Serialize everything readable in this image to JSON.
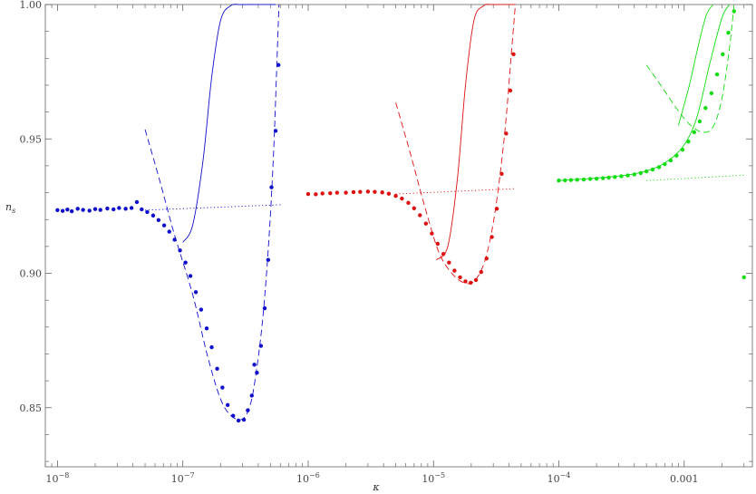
{
  "chart_data": {
    "type": "scatter",
    "title": "",
    "xlabel": "κ",
    "ylabel": "n",
    "ylabel_sub": "s",
    "xscale": "log",
    "xlim": [
      8e-09,
      0.0035
    ],
    "ylim": [
      0.828,
      1.0
    ],
    "grid": false,
    "legend": "none",
    "x_ticks": [
      {
        "value": 1e-08,
        "base": "10",
        "exp": "−8"
      },
      {
        "value": 1e-07,
        "base": "10",
        "exp": "−7"
      },
      {
        "value": 1e-06,
        "base": "10",
        "exp": "−6"
      },
      {
        "value": 1e-05,
        "base": "10",
        "exp": "−5"
      },
      {
        "value": 0.0001,
        "base": "10",
        "exp": "−4"
      },
      {
        "value": 0.001,
        "base": "0.001",
        "exp": ""
      }
    ],
    "y_ticks": [
      {
        "value": 0.85,
        "label": "0.85"
      },
      {
        "value": 0.9,
        "label": "0.90"
      },
      {
        "value": 0.95,
        "label": "0.95"
      },
      {
        "value": 1.0,
        "label": "1.00"
      }
    ],
    "series": [
      {
        "color": "#1010cc",
        "points": [
          [
            1e-08,
            0.9235
          ],
          [
            1.1e-08,
            0.9232
          ],
          [
            1.2e-08,
            0.9237
          ],
          [
            1.3e-08,
            0.9231
          ],
          [
            1.45e-08,
            0.924
          ],
          [
            1.6e-08,
            0.9236
          ],
          [
            1.8e-08,
            0.9233
          ],
          [
            2e-08,
            0.9239
          ],
          [
            2.2e-08,
            0.9236
          ],
          [
            2.5e-08,
            0.9241
          ],
          [
            2.8e-08,
            0.9238
          ],
          [
            3.1e-08,
            0.9243
          ],
          [
            3.5e-08,
            0.924
          ],
          [
            3.9e-08,
            0.9243
          ],
          [
            4.3e-08,
            0.9265
          ],
          [
            4.7e-08,
            0.9238
          ],
          [
            5.2e-08,
            0.9228
          ],
          [
            5.8e-08,
            0.9215
          ],
          [
            6.4e-08,
            0.9198
          ],
          [
            7.1e-08,
            0.9178
          ],
          [
            7.8e-08,
            0.9155
          ],
          [
            8.6e-08,
            0.9125
          ],
          [
            9.5e-08,
            0.9085
          ],
          [
            1.05e-07,
            0.904
          ],
          [
            1.15e-07,
            0.899
          ],
          [
            1.27e-07,
            0.893
          ],
          [
            1.4e-07,
            0.8865
          ],
          [
            1.55e-07,
            0.8795
          ],
          [
            1.7e-07,
            0.8725
          ],
          [
            1.88e-07,
            0.8645
          ],
          [
            2.07e-07,
            0.8575
          ],
          [
            2.28e-07,
            0.851
          ],
          [
            2.52e-07,
            0.847
          ],
          [
            2.78e-07,
            0.8452
          ],
          [
            3.07e-07,
            0.8455
          ],
          [
            3.3e-07,
            0.849
          ],
          [
            3.55e-07,
            0.8545
          ],
          [
            3.72e-07,
            0.866
          ],
          [
            3.9e-07,
            0.863
          ],
          [
            4.2e-07,
            0.873
          ],
          [
            4.5e-07,
            0.887
          ],
          [
            4.8e-07,
            0.905
          ],
          [
            5.1e-07,
            0.932
          ],
          [
            5.5e-07,
            0.953
          ],
          [
            5.8e-07,
            0.9775
          ]
        ],
        "solid": [
          [
            1e-07,
            0.9115
          ],
          [
            1.2e-07,
            0.918
          ],
          [
            1.45e-07,
            0.942
          ],
          [
            1.7e-07,
            0.973
          ],
          [
            2e-07,
            0.994
          ],
          [
            2.4e-07,
            0.9995
          ],
          [
            3e-07,
            1.0
          ],
          [
            5.5e-07,
            1.0
          ]
        ],
        "dashed": [
          [
            5e-08,
            0.9535
          ],
          [
            6.5e-08,
            0.935
          ],
          [
            8.5e-08,
            0.915
          ],
          [
            1.2e-07,
            0.892
          ],
          [
            1.6e-07,
            0.868
          ],
          [
            2.1e-07,
            0.851
          ],
          [
            2.8e-07,
            0.8455
          ],
          [
            3.4e-07,
            0.85
          ],
          [
            3.9e-07,
            0.865
          ],
          [
            4.4e-07,
            0.886
          ],
          [
            4.9e-07,
            0.915
          ],
          [
            5.3e-07,
            0.945
          ],
          [
            5.6e-07,
            0.975
          ],
          [
            5.85e-07,
            1.0
          ]
        ],
        "dotted": [
          [
            5e-08,
            0.9235
          ],
          [
            6e-07,
            0.9255
          ]
        ]
      },
      {
        "color": "#dd1111",
        "points": [
          [
            1e-06,
            0.9295
          ],
          [
            1.15e-06,
            0.9294
          ],
          [
            1.3e-06,
            0.9297
          ],
          [
            1.5e-06,
            0.9298
          ],
          [
            1.7e-06,
            0.93
          ],
          [
            2e-06,
            0.93
          ],
          [
            2.3e-06,
            0.9302
          ],
          [
            2.6e-06,
            0.9303
          ],
          [
            3e-06,
            0.9304
          ],
          [
            3.4e-06,
            0.9303
          ],
          [
            3.9e-06,
            0.9301
          ],
          [
            4.4e-06,
            0.9296
          ],
          [
            5e-06,
            0.9288
          ],
          [
            5.6e-06,
            0.9278
          ],
          [
            6.3e-06,
            0.9262
          ],
          [
            7e-06,
            0.9242
          ],
          [
            7.8e-06,
            0.9216
          ],
          [
            8.7e-06,
            0.9185
          ],
          [
            9.7e-06,
            0.9148
          ],
          [
            1.08e-05,
            0.911
          ],
          [
            1.2e-05,
            0.9072
          ],
          [
            1.33e-05,
            0.904
          ],
          [
            1.47e-05,
            0.901
          ],
          [
            1.63e-05,
            0.8985
          ],
          [
            1.8e-05,
            0.897
          ],
          [
            1.98e-05,
            0.8965
          ],
          [
            2.18e-05,
            0.8975
          ],
          [
            2.4e-05,
            0.9005
          ],
          [
            2.65e-05,
            0.9055
          ],
          [
            2.92e-05,
            0.9135
          ],
          [
            3.2e-05,
            0.924
          ],
          [
            3.5e-05,
            0.937
          ],
          [
            3.8e-05,
            0.952
          ],
          [
            4.1e-05,
            0.968
          ],
          [
            4.35e-05,
            0.9815
          ]
        ],
        "solid": [
          [
            1.05e-05,
            0.905
          ],
          [
            1.3e-05,
            0.91
          ],
          [
            1.55e-05,
            0.935
          ],
          [
            1.8e-05,
            0.97
          ],
          [
            2.1e-05,
            0.994
          ],
          [
            2.5e-05,
            0.9995
          ],
          [
            3e-05,
            1.0
          ],
          [
            4.5e-05,
            1.0
          ]
        ],
        "dashed": [
          [
            5e-06,
            0.9635
          ],
          [
            6.5e-06,
            0.945
          ],
          [
            8.5e-06,
            0.925
          ],
          [
            1.1e-05,
            0.908
          ],
          [
            1.4e-05,
            0.9
          ],
          [
            1.75e-05,
            0.8965
          ],
          [
            2.1e-05,
            0.897
          ],
          [
            2.5e-05,
            0.903
          ],
          [
            2.9e-05,
            0.915
          ],
          [
            3.3e-05,
            0.932
          ],
          [
            3.75e-05,
            0.955
          ],
          [
            4.15e-05,
            0.98
          ],
          [
            4.5e-05,
            1.0
          ]
        ],
        "dotted": [
          [
            5e-06,
            0.9295
          ],
          [
            4.5e-05,
            0.9315
          ]
        ]
      },
      {
        "color": "#11dd11",
        "points": [
          [
            0.0001,
            0.9345
          ],
          [
            0.000112,
            0.9346
          ],
          [
            0.000125,
            0.9347
          ],
          [
            0.00014,
            0.9348
          ],
          [
            0.000158,
            0.9349
          ],
          [
            0.000178,
            0.9351
          ],
          [
            0.0002,
            0.9352
          ],
          [
            0.000225,
            0.9354
          ],
          [
            0.00025,
            0.9356
          ],
          [
            0.00028,
            0.9358
          ],
          [
            0.000315,
            0.9361
          ],
          [
            0.000355,
            0.9364
          ],
          [
            0.0004,
            0.9368
          ],
          [
            0.00045,
            0.9373
          ],
          [
            0.0005,
            0.9379
          ],
          [
            0.00056,
            0.9386
          ],
          [
            0.00063,
            0.9395
          ],
          [
            0.0007,
            0.9406
          ],
          [
            0.00078,
            0.942
          ],
          [
            0.00087,
            0.9438
          ],
          [
            0.00097,
            0.946
          ],
          [
            0.00108,
            0.949
          ],
          [
            0.0012,
            0.9525
          ],
          [
            0.00133,
            0.9565
          ],
          [
            0.00148,
            0.9615
          ],
          [
            0.00165,
            0.967
          ],
          [
            0.00183,
            0.974
          ],
          [
            0.00203,
            0.9815
          ],
          [
            0.00225,
            0.9895
          ],
          [
            0.0025,
            0.9975
          ],
          [
            0.003,
            0.8985
          ]
        ],
        "solid": [
          [
            0.0001,
            0.9345
          ],
          [
            0.0004,
            0.937
          ],
          [
            0.0008,
            0.943
          ],
          [
            0.0012,
            0.955
          ],
          [
            0.0016,
            0.978
          ],
          [
            0.002,
            0.995
          ],
          [
            0.0023,
            1.0
          ]
        ],
        "solid2": [
          [
            0.0009,
            0.955
          ],
          [
            0.0011,
            0.97
          ],
          [
            0.0013,
            0.985
          ],
          [
            0.0015,
            0.996
          ],
          [
            0.0017,
            1.0
          ]
        ],
        "dashed": [
          [
            0.0005,
            0.9775
          ],
          [
            0.00065,
            0.97
          ],
          [
            0.00085,
            0.962
          ],
          [
            0.0011,
            0.9555
          ],
          [
            0.0014,
            0.9525
          ],
          [
            0.0017,
            0.9545
          ],
          [
            0.002,
            0.965
          ],
          [
            0.0023,
            0.984
          ],
          [
            0.0025,
            1.0
          ]
        ],
        "dotted": [
          [
            0.0005,
            0.9345
          ],
          [
            0.003,
            0.9365
          ]
        ]
      }
    ]
  }
}
